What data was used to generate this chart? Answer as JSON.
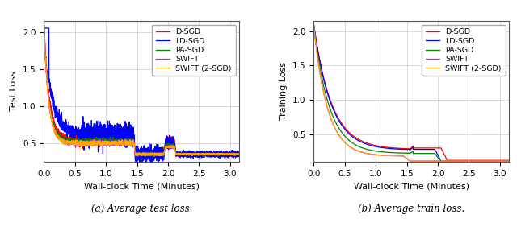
{
  "colors": {
    "D-SGD": "#ff0000",
    "LD-SGD": "#0000ff",
    "PA-SGD": "#008000",
    "SWIFT": "#ff00ff",
    "SWIFT (2-SGD)": "#ffa500"
  },
  "xlim": [
    0,
    3.15
  ],
  "ylim_test": [
    0.25,
    2.15
  ],
  "ylim_train": [
    0.1,
    2.15
  ],
  "xlabel": "Wall-clock Time (Minutes)",
  "ylabel_left": "Test Loss",
  "ylabel_right": "Training Loss",
  "caption_left": "(a) Average test loss.",
  "caption_right": "(b) Average train loss.",
  "legend_entries": [
    "D-SGD",
    "LD-SGD",
    "PA-SGD",
    "SWIFT",
    "SWIFT (2-SGD)"
  ],
  "xticks": [
    0,
    0.5,
    1,
    1.5,
    2,
    2.5,
    3
  ],
  "yticks": [
    0.5,
    1.0,
    1.5,
    2.0
  ],
  "linewidth": 0.9,
  "background_color": "#ffffff",
  "grid_color": "#cccccc"
}
